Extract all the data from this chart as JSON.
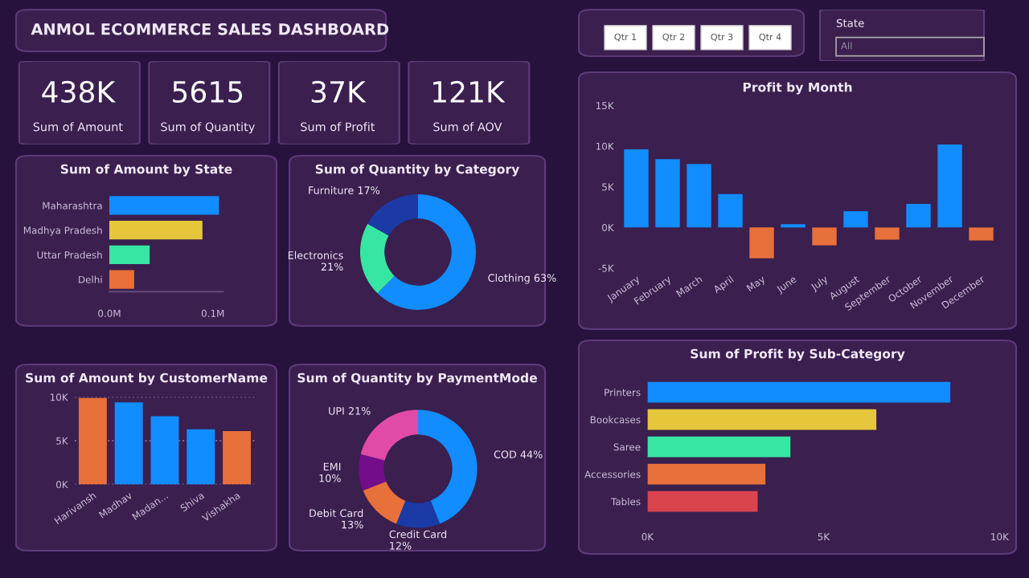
{
  "chart_data": [
    {
      "type": "other",
      "title": "ANMOL ECOMMERCE SALES DASHBOARD"
    },
    {
      "type": "other",
      "annotations": [
        "438K",
        "Sum of Amount",
        "5615",
        "Sum of Quantity",
        "37K",
        "Sum of Profit",
        "121K",
        "Sum of AOV"
      ]
    },
    {
      "type": "other",
      "annotations": [
        "Qtr 1",
        "Qtr 2",
        "Qtr 3",
        "Qtr 4",
        "State",
        "All"
      ]
    },
    {
      "type": "bar",
      "title": "Sum of Amount by State",
      "orientation": "horizontal",
      "categories": [
        "Maharashtra",
        "Madhya Pradesh",
        "Uttar Pradesh",
        "Delhi"
      ],
      "values": [
        0.106,
        0.09,
        0.039,
        0.024
      ],
      "colors": [
        "#118dff",
        "#e6c63a",
        "#37e6a3",
        "#e8703a"
      ],
      "xlim": [
        0,
        0.11
      ],
      "xticks": [
        {
          "value": 0,
          "label": "0.0M"
        },
        {
          "value": 0.1,
          "label": "0.1M"
        }
      ]
    },
    {
      "type": "donut",
      "title": "Sum of Quantity by Category",
      "categories": [
        "Clothing",
        "Electronics",
        "Furniture"
      ],
      "values": [
        63,
        21,
        17
      ],
      "value_labels": [
        "63%",
        "21%",
        "17%"
      ],
      "colors": [
        "#118dff",
        "#37e6a3",
        "#1b3aa6"
      ]
    },
    {
      "type": "bar",
      "title": "Profit by Month",
      "categories": [
        "January",
        "February",
        "March",
        "April",
        "May",
        "June",
        "July",
        "August",
        "September",
        "October",
        "November",
        "December"
      ],
      "values": [
        9600,
        8400,
        7800,
        4100,
        -3800,
        400,
        -2200,
        2000,
        -1500,
        2900,
        10200,
        -1600
      ],
      "colors": [
        "#118dff",
        "#118dff",
        "#118dff",
        "#118dff",
        "#e8703a",
        "#118dff",
        "#e8703a",
        "#118dff",
        "#e8703a",
        "#118dff",
        "#118dff",
        "#e8703a"
      ],
      "ylim": [
        -5000,
        15000
      ],
      "yticks": [
        {
          "value": -5000,
          "label": "-5K"
        },
        {
          "value": 0,
          "label": "0K"
        },
        {
          "value": 5000,
          "label": "5K"
        },
        {
          "value": 10000,
          "label": "10K"
        },
        {
          "value": 15000,
          "label": "15K"
        }
      ]
    },
    {
      "type": "bar",
      "title": "Sum of Amount by CustomerName",
      "categories": [
        "Harivansh",
        "Madhav",
        "Madan...",
        "Shiva",
        "Vishakha"
      ],
      "values": [
        9900,
        9400,
        7800,
        6300,
        6100
      ],
      "colors": [
        "#e8703a",
        "#118dff",
        "#118dff",
        "#118dff",
        "#e8703a"
      ],
      "ylim": [
        0,
        10000
      ],
      "yticks": [
        {
          "value": 0,
          "label": "0K"
        },
        {
          "value": 5000,
          "label": "5K"
        },
        {
          "value": 10000,
          "label": "10K"
        }
      ],
      "grid": "y"
    },
    {
      "type": "donut",
      "title": "Sum of Quantity by PaymentMode",
      "categories": [
        "COD",
        "Credit Card",
        "Debit Card",
        "EMI",
        "UPI"
      ],
      "values": [
        44,
        12,
        13,
        10,
        21
      ],
      "value_labels": [
        "44%",
        "12%",
        "13%",
        "10%",
        "21%"
      ],
      "colors": [
        "#118dff",
        "#1b3aa6",
        "#e8703a",
        "#740d8c",
        "#e24aa8"
      ]
    },
    {
      "type": "bar",
      "title": "Sum of Profit by Sub-Category",
      "orientation": "horizontal",
      "categories": [
        "Printers",
        "Bookcases",
        "Saree",
        "Accessories",
        "Tables"
      ],
      "values": [
        8600,
        6500,
        4060,
        3350,
        3130
      ],
      "colors": [
        "#118dff",
        "#e6c63a",
        "#37e6a3",
        "#e8703a",
        "#d9444e"
      ],
      "xlim": [
        0,
        10000
      ],
      "xticks": [
        {
          "value": 0,
          "label": "0K"
        },
        {
          "value": 5000,
          "label": "5K"
        },
        {
          "value": 10000,
          "label": "10K"
        }
      ]
    }
  ]
}
